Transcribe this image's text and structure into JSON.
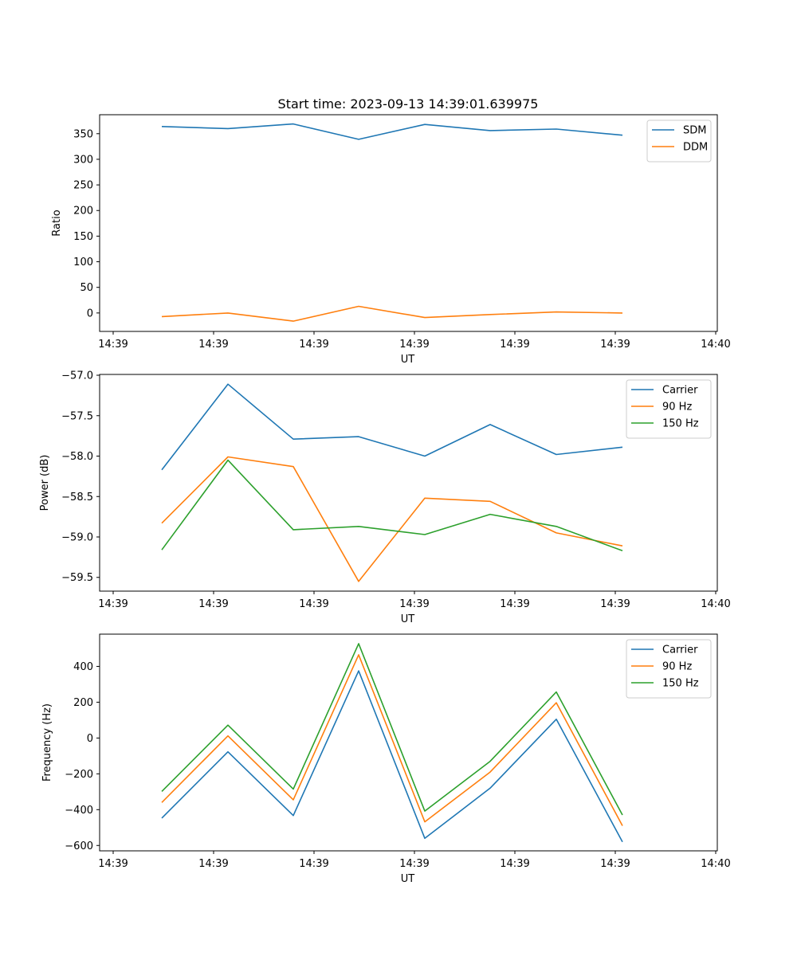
{
  "title": "Start time: 2023-09-13 14:39:01.639975",
  "colors": {
    "blue": "#1f77b4",
    "orange": "#ff7f0e",
    "green": "#2ca02c"
  },
  "chart_data": [
    {
      "type": "line",
      "title": "Start time: 2023-09-13 14:39:01.639975",
      "xlabel": "UT",
      "ylabel": "Ratio",
      "x_tick_labels": [
        "14:39",
        "14:39",
        "14:39",
        "14:39",
        "14:39",
        "14:39",
        "14:40"
      ],
      "ylim": [
        -36,
        387
      ],
      "yticks": [
        0,
        50,
        100,
        150,
        200,
        250,
        300,
        350
      ],
      "legend_position": "upper-right",
      "series": [
        {
          "name": "SDM",
          "color": "#1f77b4",
          "values": [
            364,
            360,
            369,
            339,
            368,
            356,
            359,
            347
          ]
        },
        {
          "name": "DDM",
          "color": "#ff7f0e",
          "values": [
            -7,
            0,
            -16,
            13,
            -9,
            -3,
            2,
            0
          ]
        }
      ]
    },
    {
      "type": "line",
      "xlabel": "UT",
      "ylabel": "Power (dB)",
      "x_tick_labels": [
        "14:39",
        "14:39",
        "14:39",
        "14:39",
        "14:39",
        "14:39",
        "14:40"
      ],
      "ylim": [
        -59.67,
        -56.99
      ],
      "yticks": [
        -59.5,
        -59.0,
        -58.5,
        -58.0,
        -57.5,
        -57.0
      ],
      "ytick_labels": [
        "−59.5",
        "−59.0",
        "−58.5",
        "−58.0",
        "−57.5",
        "−57.0"
      ],
      "legend_position": "upper-right",
      "series": [
        {
          "name": "Carrier",
          "color": "#1f77b4",
          "values": [
            -58.17,
            -57.11,
            -57.79,
            -57.76,
            -58.0,
            -57.61,
            -57.98,
            -57.89
          ]
        },
        {
          "name": "90 Hz",
          "color": "#ff7f0e",
          "values": [
            -58.83,
            -58.01,
            -58.13,
            -59.55,
            -58.52,
            -58.56,
            -58.95,
            -59.11
          ]
        },
        {
          "name": "150 Hz",
          "color": "#2ca02c",
          "values": [
            -59.16,
            -58.05,
            -58.91,
            -58.87,
            -58.97,
            -58.72,
            -58.87,
            -59.17
          ]
        }
      ]
    },
    {
      "type": "line",
      "xlabel": "UT",
      "ylabel": "Frequency (Hz)",
      "x_tick_labels": [
        "14:39",
        "14:39",
        "14:39",
        "14:39",
        "14:39",
        "14:39",
        "14:40"
      ],
      "ylim": [
        -630,
        580
      ],
      "yticks": [
        -600,
        -400,
        -200,
        0,
        200,
        400
      ],
      "ytick_labels": [
        "−600",
        "−400",
        "−200",
        "0",
        "200",
        "400"
      ],
      "legend_position": "upper-right",
      "series": [
        {
          "name": "Carrier",
          "color": "#1f77b4",
          "values": [
            -447,
            -77,
            -433,
            375,
            -560,
            -280,
            105,
            -580
          ]
        },
        {
          "name": "90 Hz",
          "color": "#ff7f0e",
          "values": [
            -360,
            12,
            -345,
            465,
            -468,
            -190,
            197,
            -490
          ]
        },
        {
          "name": "150 Hz",
          "color": "#2ca02c",
          "values": [
            -298,
            72,
            -285,
            527,
            -408,
            -130,
            257,
            -430
          ]
        }
      ]
    }
  ]
}
